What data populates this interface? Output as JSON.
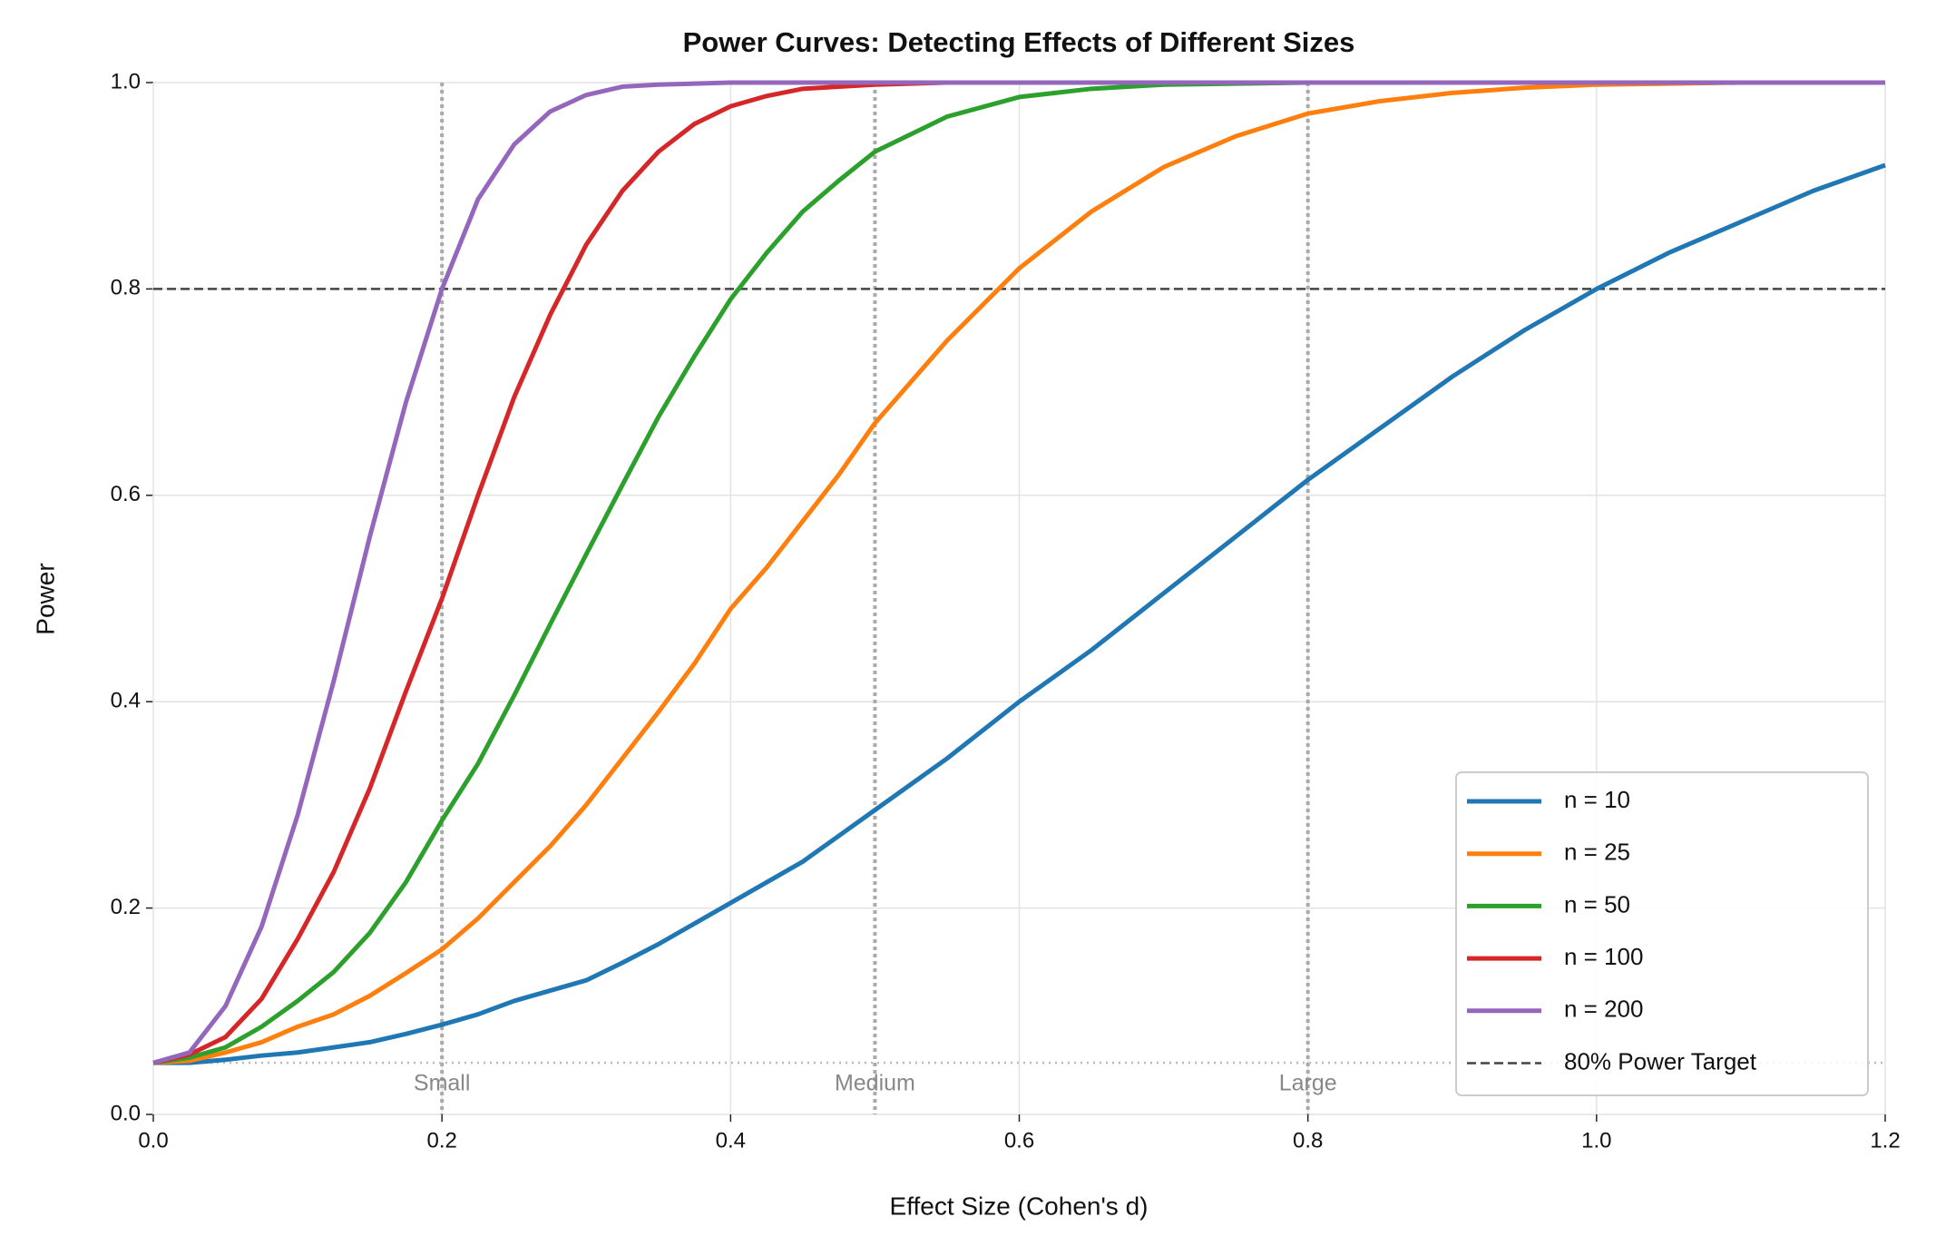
{
  "chart_data": {
    "type": "line",
    "title": "Power Curves: Detecting Effects of Different Sizes",
    "x_label": "Effect Size (Cohen's d)",
    "y_label": "Power",
    "x": [
      0,
      0.025,
      0.05,
      0.075,
      0.1,
      0.125,
      0.15,
      0.175,
      0.2,
      0.225,
      0.25,
      0.275,
      0.3,
      0.325,
      0.35,
      0.375,
      0.4,
      0.425,
      0.45,
      0.475,
      0.5,
      0.55,
      0.6,
      0.65,
      0.7,
      0.75,
      0.8,
      0.85,
      0.9,
      0.95,
      1.0,
      1.05,
      1.1,
      1.15,
      1.2
    ],
    "series": [
      {
        "name": "n = 10",
        "color": "#1f77b4",
        "values": [
          0.05,
          0.05,
          0.053,
          0.057,
          0.06,
          0.065,
          0.07,
          0.078,
          0.087,
          0.097,
          0.11,
          0.12,
          0.13,
          0.147,
          0.165,
          0.185,
          0.205,
          0.225,
          0.245,
          0.27,
          0.295,
          0.345,
          0.4,
          0.45,
          0.505,
          0.56,
          0.615,
          0.665,
          0.715,
          0.76,
          0.8,
          0.835,
          0.865,
          0.895,
          0.92
        ]
      },
      {
        "name": "n = 25",
        "color": "#ff7f0e",
        "values": [
          0.05,
          0.052,
          0.06,
          0.07,
          0.085,
          0.097,
          0.115,
          0.137,
          0.16,
          0.19,
          0.225,
          0.26,
          0.3,
          0.345,
          0.39,
          0.437,
          0.49,
          0.53,
          0.575,
          0.62,
          0.67,
          0.75,
          0.82,
          0.875,
          0.918,
          0.948,
          0.97,
          0.982,
          0.99,
          0.995,
          0.998,
          0.999,
          1,
          1,
          1
        ]
      },
      {
        "name": "n = 50",
        "color": "#2ca02c",
        "values": [
          0.05,
          0.055,
          0.065,
          0.085,
          0.11,
          0.138,
          0.176,
          0.225,
          0.285,
          0.34,
          0.406,
          0.475,
          0.543,
          0.61,
          0.676,
          0.735,
          0.79,
          0.835,
          0.875,
          0.905,
          0.933,
          0.967,
          0.986,
          0.994,
          0.998,
          0.999,
          1,
          1,
          1,
          1,
          1,
          1,
          1,
          1,
          1
        ]
      },
      {
        "name": "n = 100",
        "color": "#d62728",
        "values": [
          0.05,
          0.058,
          0.075,
          0.112,
          0.17,
          0.235,
          0.316,
          0.41,
          0.5,
          0.6,
          0.695,
          0.775,
          0.843,
          0.895,
          0.933,
          0.96,
          0.977,
          0.987,
          0.994,
          0.996,
          0.998,
          1,
          1,
          1,
          1,
          1,
          1,
          1,
          1,
          1,
          1,
          1,
          1,
          1,
          1
        ]
      },
      {
        "name": "n = 200",
        "color": "#9467bd",
        "values": [
          0.05,
          0.06,
          0.105,
          0.182,
          0.29,
          0.42,
          0.56,
          0.69,
          0.8,
          0.887,
          0.94,
          0.972,
          0.988,
          0.996,
          0.998,
          0.999,
          1,
          1,
          1,
          1,
          1,
          1,
          1,
          1,
          1,
          1,
          1,
          1,
          1,
          1,
          1,
          1,
          1,
          1,
          1
        ]
      }
    ],
    "target_line": {
      "value": 0.8,
      "label": "80% Power Target",
      "color": "#444444"
    },
    "alpha_line": {
      "value": 0.05,
      "color": "#bbbbbb"
    },
    "effect_markers": [
      {
        "value": 0.2,
        "label": "Small"
      },
      {
        "value": 0.5,
        "label": "Medium"
      },
      {
        "value": 0.8,
        "label": "Large"
      }
    ],
    "xlim": [
      0,
      1.2
    ],
    "ylim": [
      0,
      1.0
    ],
    "xticks": [
      {
        "value": 0,
        "label": "0.0"
      },
      0.2,
      0.4,
      0.6,
      0.8,
      {
        "value": 1.0,
        "label": "1.0"
      },
      1.2
    ],
    "yticks": [
      {
        "value": 0,
        "label": "0.0"
      },
      0.2,
      0.4,
      0.6,
      0.8,
      {
        "value": 1.0,
        "label": "1.0"
      }
    ],
    "grid": true,
    "legend_position": "lower-right"
  }
}
